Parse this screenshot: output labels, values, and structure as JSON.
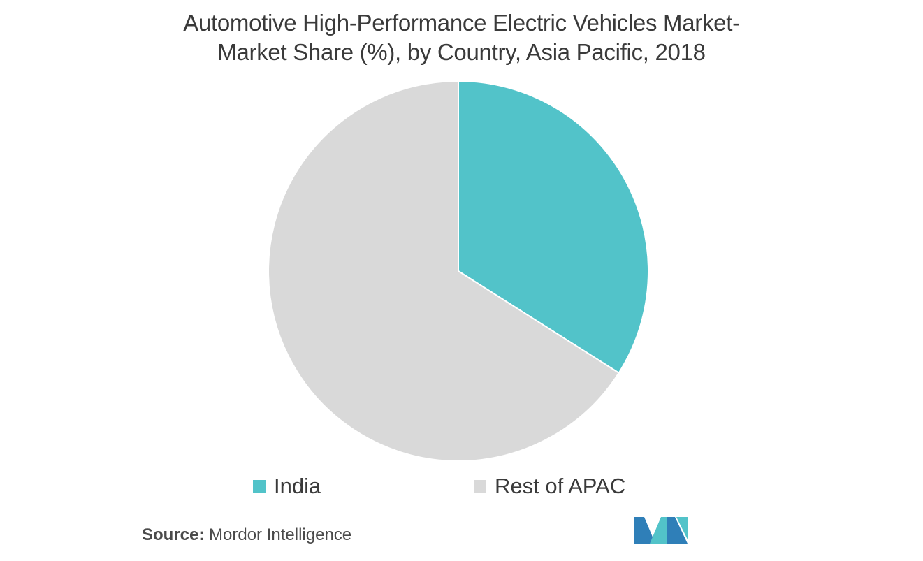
{
  "chart_data": {
    "type": "pie",
    "title_line1": "Automotive High-Performance Electric Vehicles Market-",
    "title_line2": "Market Share (%), by Country, Asia Pacific, 2018",
    "categories": [
      "India",
      "Rest of APAC"
    ],
    "values": [
      34.0,
      66.0
    ],
    "colors": [
      "#52c3c9",
      "#d9d9d9"
    ],
    "start_angle_deg": 0,
    "direction": "clockwise",
    "legend_position": "bottom"
  },
  "source": {
    "label": "Source:",
    "text": "Mordor Intelligence"
  },
  "logo": {
    "icon": "mordor-intelligence-logo",
    "colors": [
      "#2f7fb8",
      "#52c3c9"
    ]
  }
}
